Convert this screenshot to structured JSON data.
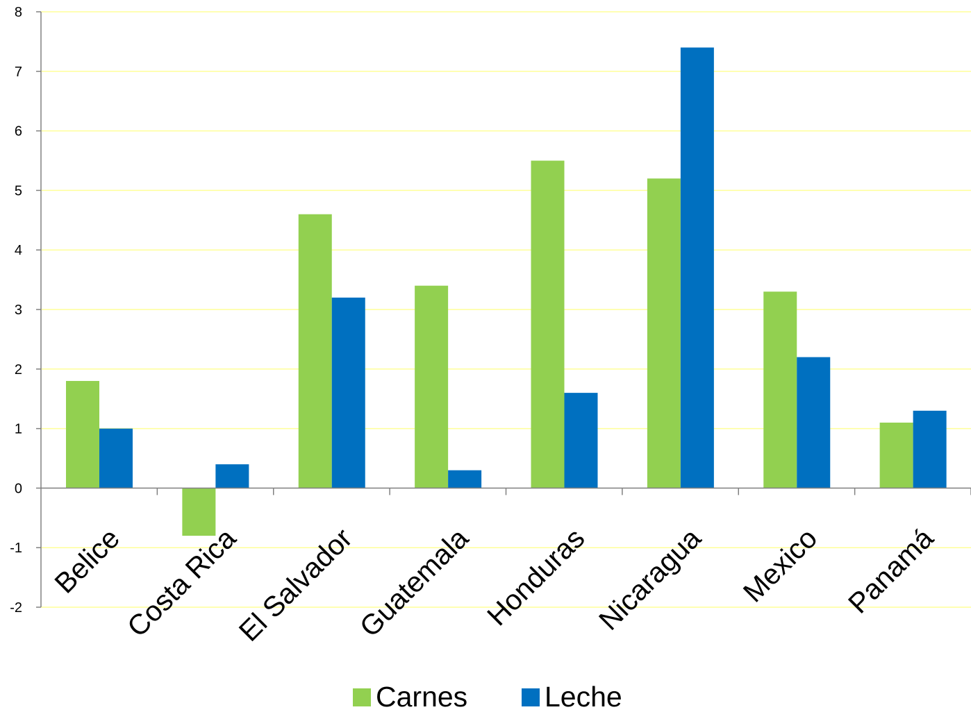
{
  "chart_data": {
    "type": "bar",
    "title": "",
    "xlabel": "",
    "ylabel": "",
    "categories": [
      "Belice",
      "Costa Rica",
      "El Salvador",
      "Guatemala",
      "Honduras",
      "Nicaragua",
      "Mexico",
      "Panamá"
    ],
    "series": [
      {
        "name": "Carnes",
        "color": "#92d050",
        "values": [
          1.8,
          -0.8,
          4.6,
          3.4,
          5.5,
          5.2,
          3.3,
          1.1
        ]
      },
      {
        "name": "Leche",
        "color": "#0070c0",
        "values": [
          1.0,
          0.4,
          3.2,
          0.3,
          1.6,
          7.4,
          2.2,
          1.3
        ]
      }
    ],
    "ylim": [
      -2,
      8
    ],
    "yticks": [
      -2,
      -1,
      0,
      1,
      2,
      3,
      4,
      5,
      6,
      7,
      8
    ],
    "grid": true,
    "grid_color": "#ffff99",
    "legend_position": "bottom"
  }
}
